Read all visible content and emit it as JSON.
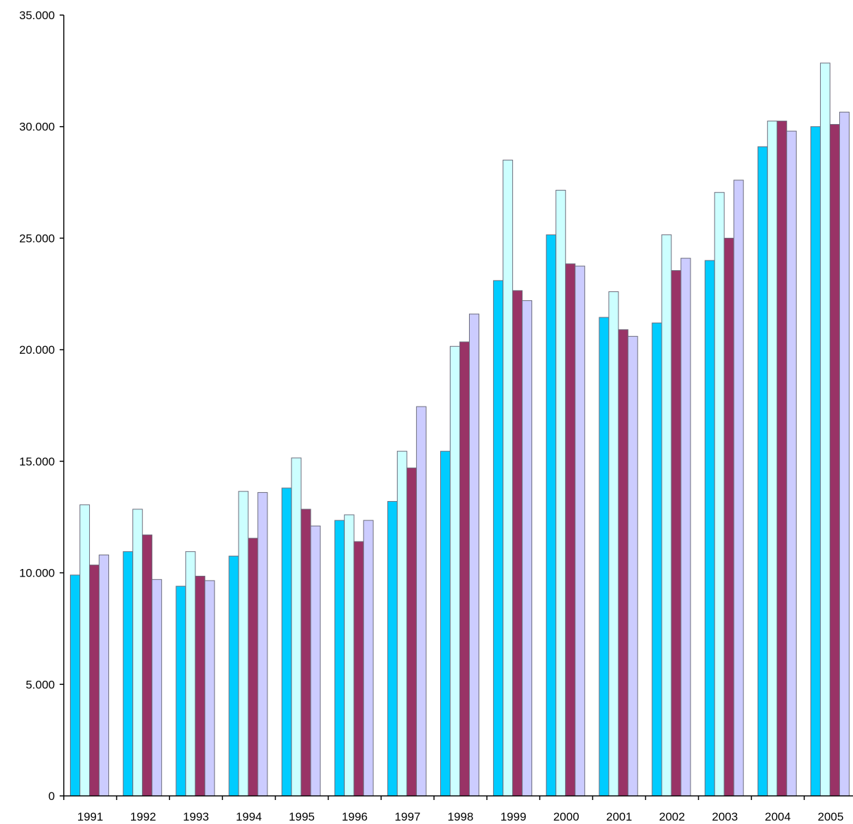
{
  "chart_data": {
    "type": "bar",
    "title": "",
    "xlabel": "",
    "ylabel": "",
    "ylim": [
      0,
      35000
    ],
    "y_ticks": [
      0,
      5000,
      10000,
      15000,
      20000,
      25000,
      30000,
      35000
    ],
    "y_tick_labels": [
      "0",
      "5.000",
      "10.000",
      "15.000",
      "20.000",
      "25.000",
      "30.000",
      "35.000"
    ],
    "grid": false,
    "legend": "none",
    "categories": [
      "1991",
      "1992",
      "1993",
      "1994",
      "1995",
      "1996",
      "1997",
      "1998",
      "1999",
      "2000",
      "2001",
      "2002",
      "2003",
      "2004",
      "2005"
    ],
    "series": [
      {
        "color": "#00ccff",
        "values": [
          9900,
          10950,
          9400,
          10750,
          13800,
          12350,
          13200,
          15450,
          23100,
          25150,
          21450,
          21200,
          24000,
          29100,
          30000
        ]
      },
      {
        "color": "#ccffff",
        "values": [
          13050,
          12850,
          10950,
          13650,
          15150,
          12600,
          15450,
          20150,
          28500,
          27150,
          22600,
          25150,
          27050,
          30250,
          32850
        ]
      },
      {
        "color": "#993366",
        "values": [
          10350,
          11700,
          9850,
          11550,
          12850,
          11400,
          14700,
          20350,
          22650,
          23850,
          20900,
          23550,
          25000,
          30250,
          30100
        ]
      },
      {
        "color": "#ccccff",
        "values": [
          10800,
          9700,
          9650,
          13600,
          12100,
          12350,
          17450,
          21600,
          22200,
          23750,
          20600,
          24100,
          27600,
          29800,
          30650
        ]
      }
    ]
  }
}
